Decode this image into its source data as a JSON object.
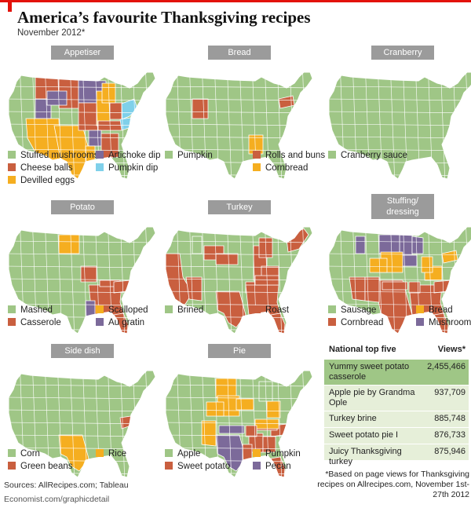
{
  "title": "America’s favourite Thanksgiving recipes",
  "subtitle": "November 2012*",
  "colors": {
    "green": "#9fc686",
    "orange": "#c95f3f",
    "yellow": "#f5ae20",
    "purple": "#7c6a9a",
    "blue": "#7fd0ea",
    "accent": "#e3120b"
  },
  "panels": [
    {
      "label": "Appetiser",
      "legend": [
        {
          "label": "Stuffed mushrooms",
          "color": "green"
        },
        {
          "label": "Cheese balls",
          "color": "orange"
        },
        {
          "label": "Devilled eggs",
          "color": "yellow"
        },
        {
          "label": "Artichoke dip",
          "color": "purple"
        },
        {
          "label": "Pumpkin dip",
          "color": "blue"
        }
      ]
    },
    {
      "label": "Bread",
      "legend": [
        {
          "label": "Pumpkin",
          "color": "green"
        },
        {
          "label": "Rolls and buns",
          "color": "orange"
        },
        {
          "label": "Cornbread",
          "color": "yellow"
        }
      ]
    },
    {
      "label": "Cranberry",
      "legend": [
        {
          "label": "Cranberry sauce",
          "color": "green"
        }
      ]
    },
    {
      "label": "Potato",
      "legend": [
        {
          "label": "Mashed",
          "color": "green"
        },
        {
          "label": "Casserole",
          "color": "orange"
        },
        {
          "label": "Scalloped",
          "color": "yellow"
        },
        {
          "label": "Au gratin",
          "color": "purple"
        }
      ]
    },
    {
      "label": "Turkey",
      "legend": [
        {
          "label": "Brined",
          "color": "green"
        },
        {
          "label": "Roast",
          "color": "orange"
        }
      ]
    },
    {
      "label": "Stuffing/ dressing",
      "legend": [
        {
          "label": "Sausage",
          "color": "green"
        },
        {
          "label": "Cornbread",
          "color": "orange"
        },
        {
          "label": "Bread",
          "color": "yellow"
        },
        {
          "label": "Mushroom",
          "color": "purple"
        }
      ]
    },
    {
      "label": "Side dish",
      "legend": [
        {
          "label": "Corn",
          "color": "green"
        },
        {
          "label": "Green beans",
          "color": "orange"
        },
        {
          "label": "Rice",
          "color": "yellow"
        }
      ]
    },
    {
      "label": "Pie",
      "legend": [
        {
          "label": "Apple",
          "color": "green"
        },
        {
          "label": "Sweet potato",
          "color": "orange"
        },
        {
          "label": "Pumpkin",
          "color": "yellow"
        },
        {
          "label": "Pecan",
          "color": "purple"
        }
      ]
    }
  ],
  "chart_data": {
    "type": "table",
    "title": "National top five",
    "value_header": "Views*",
    "rows": [
      {
        "name": "Yummy sweet potato casserole",
        "views": "2,455,466",
        "value": 2455466
      },
      {
        "name": "Apple pie by Grandma Ople",
        "views": "937,709",
        "value": 937709
      },
      {
        "name": "Turkey brine",
        "views": "885,748",
        "value": 885748
      },
      {
        "name": "Sweet potato pie I",
        "views": "876,733",
        "value": 876733
      },
      {
        "name": "Juicy Thanksgiving turkey",
        "views": "875,946",
        "value": 875946
      }
    ],
    "row_colors": [
      "#9fc686",
      "#e6efd9",
      "#e6efd9",
      "#e6efd9",
      "#e6efd9"
    ]
  },
  "footer": {
    "sources": "Sources: AllRecipes.com; Tableau",
    "credit": "Economist.com/graphicdetail",
    "note": "*Based on page views for Thanksgiving recipes on Allrecipes.com, November 1st-27th 2012"
  }
}
